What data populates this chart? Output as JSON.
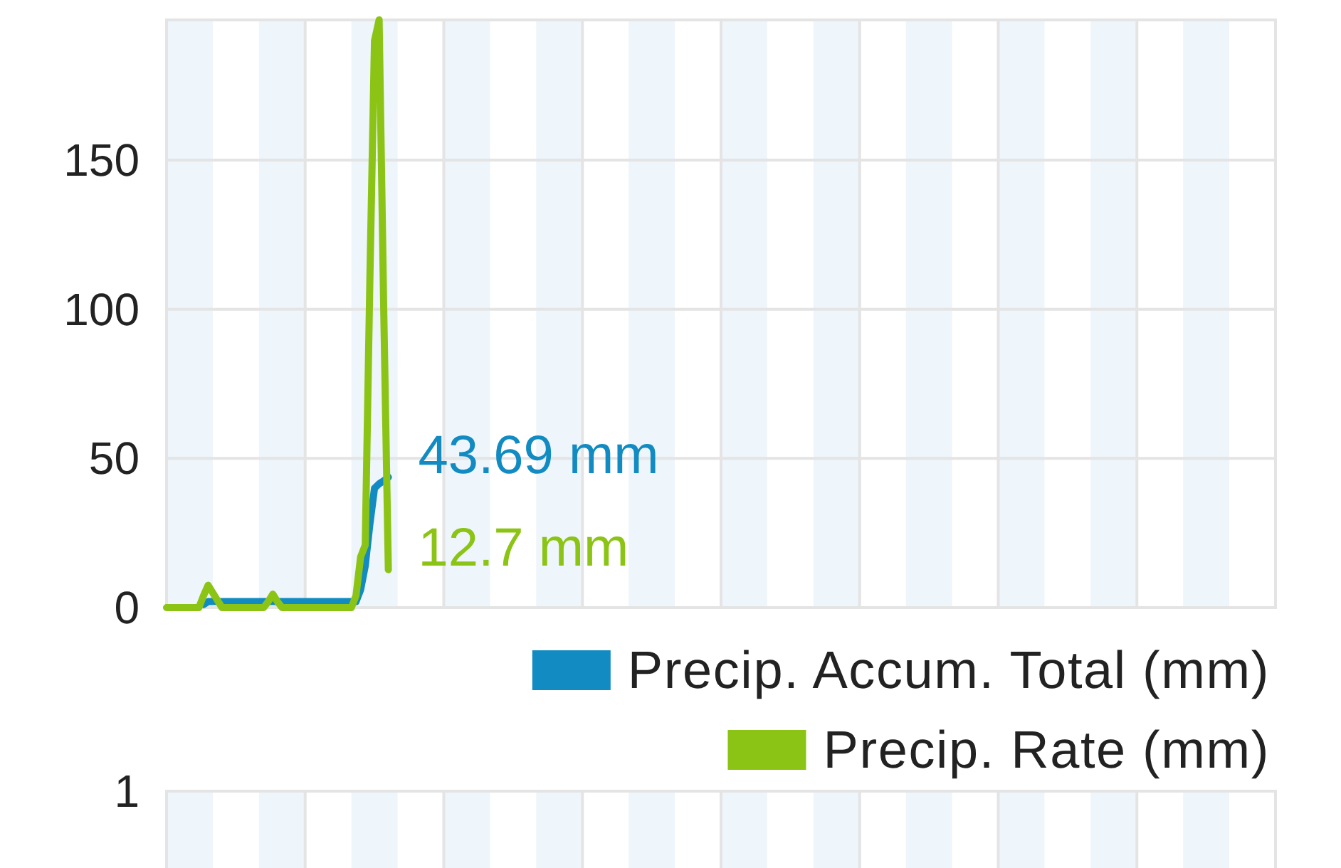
{
  "chart_data": [
    {
      "type": "line",
      "categories": [
        null,
        null,
        null,
        null,
        null,
        null,
        null,
        null,
        null,
        null,
        null,
        null,
        null,
        null,
        null,
        null,
        null,
        null,
        null,
        null,
        null,
        null,
        null,
        null,
        null,
        null,
        null,
        null,
        null,
        null,
        null,
        null,
        null,
        null,
        null,
        null,
        null,
        null,
        null,
        null,
        null,
        null,
        null,
        null,
        null,
        null,
        null,
        null,
        null,
        null,
        null,
        null,
        null,
        null,
        null,
        null,
        null,
        null,
        null,
        null,
        null,
        null,
        null,
        null,
        null,
        null,
        null,
        null,
        null,
        null,
        null,
        null,
        null,
        null,
        null,
        null,
        null,
        null,
        null,
        null,
        null,
        null,
        null,
        null,
        null,
        null,
        null,
        null,
        null,
        null,
        null,
        null,
        null,
        null,
        null,
        null,
        null,
        null,
        null,
        null,
        null,
        null,
        null,
        null,
        null,
        null,
        null,
        null,
        null,
        null,
        null,
        null,
        null,
        null,
        null,
        null,
        null,
        null,
        null,
        null,
        null,
        null,
        null,
        null,
        null,
        null,
        null,
        null,
        null,
        null,
        null,
        null,
        null,
        null,
        null,
        null,
        null,
        null,
        null,
        null,
        null,
        null,
        null,
        null,
        null,
        null,
        null,
        null,
        null,
        null,
        null,
        null,
        null,
        null,
        null,
        null,
        null,
        null,
        null,
        null,
        null,
        null,
        null,
        null,
        null,
        null,
        null,
        null,
        null,
        null,
        null,
        null,
        null,
        null,
        null,
        null,
        null,
        null,
        null,
        null,
        null,
        null,
        null,
        null,
        null,
        null,
        null,
        null,
        null,
        null,
        null,
        null,
        null,
        null,
        null,
        null,
        null,
        null,
        null,
        null,
        null,
        null,
        null,
        null,
        null,
        null,
        null,
        null,
        null,
        null,
        null,
        null,
        null,
        null,
        null,
        null,
        null,
        null,
        null,
        null,
        null,
        null,
        null,
        null,
        null,
        null,
        null,
        null,
        null,
        null,
        null,
        null,
        null,
        null,
        null,
        null,
        null,
        null,
        null,
        null,
        null
      ],
      "ylim": [
        0,
        197
      ],
      "yticks": [
        0,
        50,
        100,
        150
      ],
      "grid": true,
      "tick_labels": "y",
      "legend": "bottom right",
      "series": [
        {
          "name": "Precip. Accum. Total (mm)",
          "color": "#118bc1",
          "values": [
            null,
            null,
            null,
            null,
            null,
            null,
            null,
            null,
            1,
            2,
            2,
            2,
            2,
            2,
            2,
            2,
            2,
            2,
            2,
            2,
            2,
            2,
            2,
            2,
            2,
            2,
            2,
            2,
            2,
            2,
            2,
            2,
            2,
            2,
            2,
            2,
            2,
            2,
            2,
            2,
            2,
            2,
            6,
            14,
            28,
            40,
            41.5,
            42.5,
            43.69,
            null,
            null,
            null,
            null,
            null,
            null,
            null,
            null,
            null,
            null,
            null,
            null,
            null,
            null,
            null,
            null,
            null,
            null,
            null,
            null,
            null,
            null,
            null,
            null,
            null,
            null,
            null,
            null,
            null,
            null,
            null,
            null,
            null,
            null,
            null,
            null,
            null,
            null,
            null,
            null,
            null,
            null,
            null,
            null,
            null,
            null,
            null,
            null,
            null,
            null,
            null,
            null,
            null,
            null,
            null,
            null,
            null,
            null,
            null,
            null,
            null,
            null,
            null,
            null,
            null,
            null,
            null,
            null,
            null,
            null,
            null,
            null,
            null,
            null,
            null,
            null,
            null,
            null,
            null,
            null,
            null,
            null,
            null,
            null,
            null,
            null,
            null,
            null,
            null,
            null,
            null,
            null,
            null,
            null,
            null,
            null,
            null,
            null,
            null,
            null,
            null,
            null,
            null,
            null,
            null,
            null,
            null,
            null,
            null,
            null,
            null,
            null,
            null,
            null,
            null,
            null,
            null,
            null,
            null,
            null,
            null,
            null,
            null,
            null,
            null,
            null,
            null,
            null,
            null,
            null,
            null,
            null,
            null,
            null,
            null,
            null,
            null,
            null,
            null,
            null,
            null,
            null,
            null,
            null,
            null,
            null,
            null,
            null,
            null,
            null,
            null,
            null,
            null,
            null,
            null,
            null,
            null,
            null,
            null,
            null,
            null,
            null,
            null,
            null,
            null,
            null,
            null,
            null,
            null,
            null,
            null,
            null,
            null,
            null,
            null,
            null,
            null,
            null,
            null,
            null,
            null,
            null,
            null,
            null,
            null,
            null,
            null,
            null,
            null,
            null,
            null,
            null
          ],
          "value_labels": [
            null,
            null,
            null,
            null,
            null,
            null,
            null,
            null,
            null,
            null,
            null,
            null,
            null,
            null,
            null,
            null,
            null,
            null,
            null,
            null,
            null,
            null,
            null,
            null,
            null,
            null,
            null,
            null,
            null,
            null,
            null,
            null,
            null,
            null,
            null,
            null,
            null,
            null,
            null,
            null,
            null,
            null,
            null,
            null,
            null,
            null,
            null,
            null,
            "43.69 mm",
            null,
            null,
            null,
            null,
            null,
            null,
            null,
            null,
            null,
            null,
            null,
            null,
            null,
            null,
            null,
            null,
            null,
            null,
            null,
            null,
            null,
            null,
            null,
            null,
            null,
            null,
            null,
            null,
            null,
            null,
            null,
            null,
            null,
            null,
            null,
            null,
            null,
            null,
            null,
            null,
            null,
            null,
            null,
            null,
            null,
            null,
            null,
            null,
            null,
            null,
            null,
            null,
            null,
            null,
            null,
            null,
            null,
            null,
            null,
            null,
            null,
            null,
            null,
            null,
            null,
            null,
            null,
            null,
            null,
            null,
            null,
            null,
            null,
            null,
            null,
            null,
            null,
            null,
            null,
            null,
            null,
            null,
            null,
            null,
            null,
            null,
            null,
            null,
            null,
            null,
            null,
            null,
            null,
            null,
            null,
            null,
            null,
            null,
            null,
            null,
            null,
            null,
            null,
            null,
            null,
            null,
            null,
            null,
            null,
            null,
            null,
            null,
            null,
            null,
            null,
            null,
            null,
            null,
            null,
            null,
            null,
            null,
            null,
            null,
            null,
            null,
            null,
            null,
            null,
            null,
            null,
            null,
            null,
            null,
            null,
            null,
            null,
            null,
            null,
            null,
            null,
            null,
            null,
            null,
            null,
            null,
            null,
            null,
            null,
            null,
            null,
            null,
            null,
            null,
            null,
            null,
            null,
            null,
            null,
            null,
            null,
            null,
            null,
            null,
            null,
            null,
            null,
            null,
            null,
            null,
            null,
            null,
            null,
            null,
            null,
            null,
            null,
            null,
            null,
            null,
            null,
            null,
            null,
            null,
            null,
            null,
            null,
            null,
            null,
            null,
            null,
            null
          ]
        },
        {
          "name": "Precip. Rate (mm)",
          "color": "#8bc414",
          "values": [
            0,
            0,
            0,
            0,
            0,
            0,
            0,
            0,
            4,
            7.5,
            5,
            2.5,
            0,
            0,
            0,
            0,
            0,
            0,
            0,
            0,
            0,
            0,
            2,
            4.5,
            2,
            0,
            0,
            0,
            0,
            0,
            0,
            0,
            0,
            0,
            0,
            0,
            0,
            0,
            0,
            0,
            0,
            4,
            17,
            21,
            110,
            190,
            197,
            100,
            12.7,
            null,
            null,
            null,
            null,
            null,
            null,
            null,
            null,
            null,
            null,
            null,
            null,
            null,
            null,
            null,
            null,
            null,
            null,
            null,
            null,
            null,
            null,
            null,
            null,
            null,
            null,
            null,
            null,
            null,
            null,
            null,
            null,
            null,
            null,
            null,
            null,
            null,
            null,
            null,
            null,
            null,
            null,
            null,
            null,
            null,
            null,
            null,
            null,
            null,
            null,
            null,
            null,
            null,
            null,
            null,
            null,
            null,
            null,
            null,
            null,
            null,
            null,
            null,
            null,
            null,
            null,
            null,
            null,
            null,
            null,
            null,
            null,
            null,
            null,
            null,
            null,
            null,
            null,
            null,
            null,
            null,
            null,
            null,
            null,
            null,
            null,
            null,
            null,
            null,
            null,
            null,
            null,
            null,
            null,
            null,
            null,
            null,
            null,
            null,
            null,
            null,
            null,
            null,
            null,
            null,
            null,
            null,
            null,
            null,
            null,
            null,
            null,
            null,
            null,
            null,
            null,
            null,
            null,
            null,
            null,
            null,
            null,
            null,
            null,
            null,
            null,
            null,
            null,
            null,
            null,
            null,
            null,
            null,
            null,
            null,
            null,
            null,
            null,
            null,
            null,
            null,
            null,
            null,
            null,
            null,
            null,
            null,
            null,
            null,
            null,
            null,
            null,
            null,
            null,
            null,
            null,
            null,
            null,
            null,
            null,
            null,
            null,
            null,
            null,
            null,
            null,
            null,
            null,
            null,
            null,
            null,
            null,
            null,
            null,
            null,
            null,
            null,
            null,
            null,
            null,
            null,
            null,
            null,
            null,
            null,
            null,
            null,
            null,
            null,
            null,
            null,
            null
          ],
          "value_labels": [
            null,
            null,
            null,
            null,
            null,
            null,
            null,
            null,
            null,
            null,
            null,
            null,
            null,
            null,
            null,
            null,
            null,
            null,
            null,
            null,
            null,
            null,
            null,
            null,
            null,
            null,
            null,
            null,
            null,
            null,
            null,
            null,
            null,
            null,
            null,
            null,
            null,
            null,
            null,
            null,
            null,
            null,
            null,
            null,
            null,
            null,
            null,
            null,
            "12.7 mm",
            null,
            null,
            null,
            null,
            null,
            null,
            null,
            null,
            null,
            null,
            null,
            null,
            null,
            null,
            null,
            null,
            null,
            null,
            null,
            null,
            null,
            null,
            null,
            null,
            null,
            null,
            null,
            null,
            null,
            null,
            null,
            null,
            null,
            null,
            null,
            null,
            null,
            null,
            null,
            null,
            null,
            null,
            null,
            null,
            null,
            null,
            null,
            null,
            null,
            null,
            null,
            null,
            null,
            null,
            null,
            null,
            null,
            null,
            null,
            null,
            null,
            null,
            null,
            null,
            null,
            null,
            null,
            null,
            null,
            null,
            null,
            null,
            null,
            null,
            null,
            null,
            null,
            null,
            null,
            null,
            null,
            null,
            null,
            null,
            null,
            null,
            null,
            null,
            null,
            null,
            null,
            null,
            null,
            null,
            null,
            null,
            null,
            null,
            null,
            null,
            null,
            null,
            null,
            null,
            null,
            null,
            null,
            null,
            null,
            null,
            null,
            null,
            null,
            null,
            null,
            null,
            null,
            null,
            null,
            null,
            null,
            null,
            null,
            null,
            null,
            null,
            null,
            null,
            null,
            null,
            null,
            null,
            null,
            null,
            null,
            null,
            null,
            null,
            null,
            null,
            null,
            null,
            null,
            null,
            null,
            null,
            null,
            null,
            null,
            null,
            null,
            null,
            null,
            null,
            null,
            null,
            null,
            null,
            null,
            null,
            null,
            null,
            null,
            null,
            null,
            null,
            null,
            null,
            null,
            null,
            null,
            null,
            null,
            null,
            null,
            null,
            null,
            null,
            null,
            null,
            null,
            null,
            null,
            null,
            null,
            null,
            null,
            null,
            null,
            null,
            null,
            null
          ]
        }
      ]
    },
    {
      "type": "other",
      "annotations": [
        "1"
      ]
    }
  ]
}
